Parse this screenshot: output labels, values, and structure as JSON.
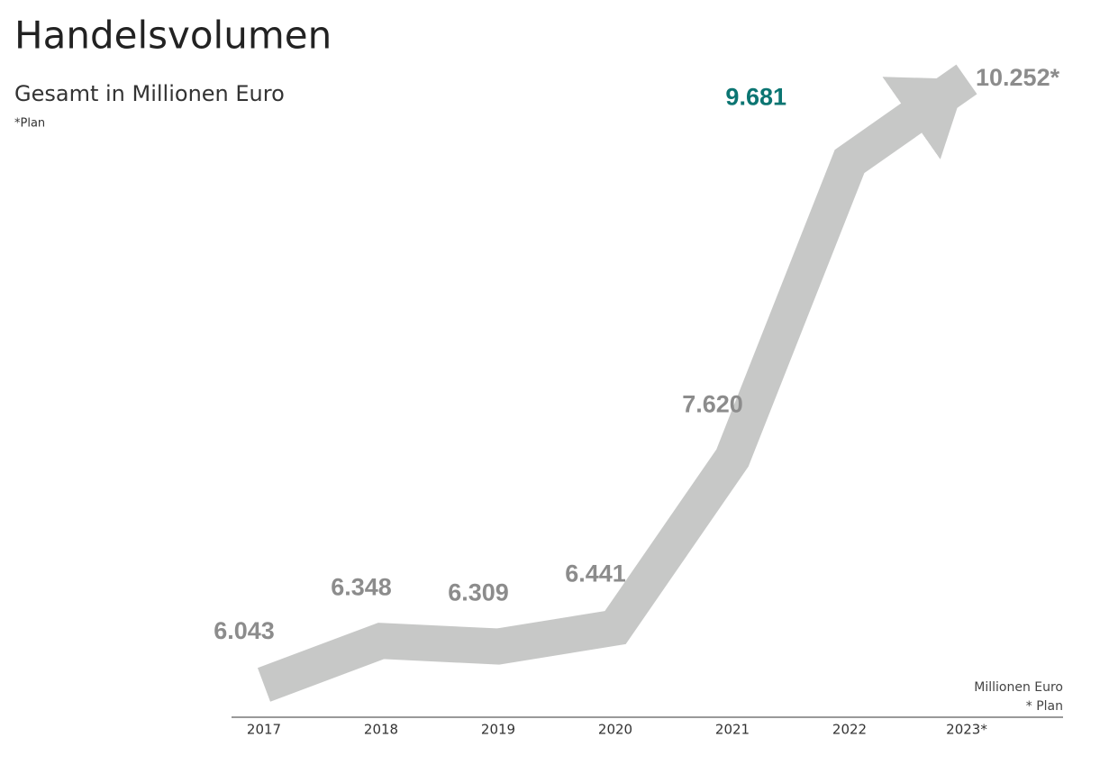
{
  "title": "Handelsvolumen",
  "subtitle": "Gesamt in Millionen Euro",
  "note": "*Plan",
  "chart_data": {
    "type": "arrow-line",
    "categories": [
      "2017",
      "2018",
      "2019",
      "2020",
      "2021",
      "2022",
      "2023*"
    ],
    "series": [
      {
        "color": "#c7c8c7",
        "values": [
          6043,
          6348,
          6309,
          6441,
          7620,
          9681,
          10252
        ],
        "value_labels": [
          "6.043",
          "6.348",
          "6.309",
          "6.441",
          "7.620",
          "9.681",
          "10.252*"
        ],
        "value_label_colors": [
          "#8c8c8c",
          "#8c8c8c",
          "#8c8c8c",
          "#8c8c8c",
          "#8c8c8c",
          "#0b7572",
          "#8c8c8c"
        ]
      }
    ],
    "unit_label": "Millionen Euro",
    "footnote": "* Plan"
  }
}
